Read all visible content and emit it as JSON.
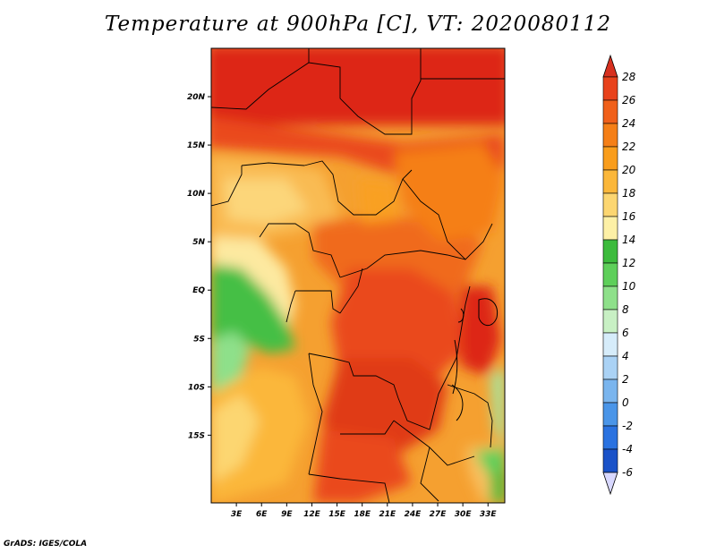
{
  "title": "Temperature at 900hPa [C], VT: 2020080112",
  "credit": "GrADS: IGES/COLA",
  "map": {
    "lon_ticks": [
      "3E",
      "6E",
      "9E",
      "12E",
      "15E",
      "18E",
      "21E",
      "24E",
      "27E",
      "30E",
      "33E"
    ],
    "lat_ticks": [
      "20N",
      "15N",
      "10N",
      "5N",
      "EQ",
      "5S",
      "10S",
      "15S"
    ],
    "lon_range": [
      0,
      35
    ],
    "lat_range": [
      -22,
      25
    ]
  },
  "colorbar": {
    "labels": [
      "28",
      "26",
      "24",
      "22",
      "20",
      "18",
      "16",
      "14",
      "12",
      "10",
      "8",
      "6",
      "4",
      "2",
      "0",
      "-2",
      "-4",
      "-6"
    ],
    "colors": [
      "#d7301f",
      "#e8421c",
      "#f0601a",
      "#f57f17",
      "#f99d1c",
      "#fbb73a",
      "#fcd671",
      "#fdf0a6",
      "#3cbb3c",
      "#5ecf5a",
      "#8ee08a",
      "#c8f0c4",
      "#d6ecfa",
      "#aad2f5",
      "#7ab5ee",
      "#4a95e8",
      "#2a72e0",
      "#1a52c8",
      "#0f3aaa",
      "#0a2080",
      "#d8d8ff"
    ]
  }
}
